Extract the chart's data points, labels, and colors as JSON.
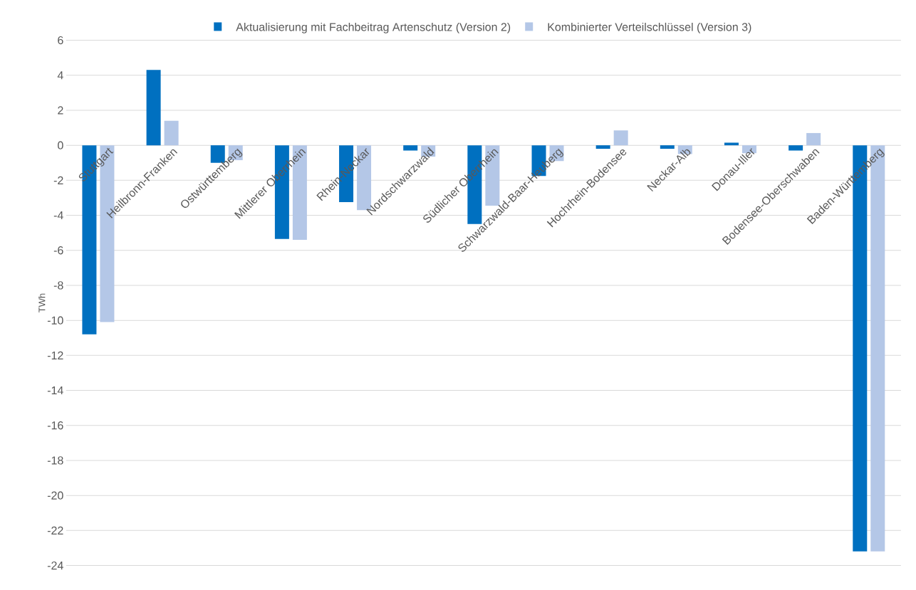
{
  "chart_data": {
    "type": "bar",
    "ylabel": "TWh",
    "categories": [
      "Stuttgart",
      "Heilbronn-Franken",
      "Ostwürttemberg",
      "Mittlerer Oberrhein",
      "Rhein-Neckar",
      "Nordschwarzwald",
      "Südlicher Oberrhein",
      "Schwarzwald-Baar-Heuberg",
      "Hochrhein-Bodensee",
      "Neckar-Alb",
      "Donau-Iller",
      "Bodensee-Oberschwaben",
      "Baden-Württemberg"
    ],
    "series": [
      {
        "name": "Aktualisierung mit Fachbeitrag Artenschutz (Version 2)",
        "color": "#0070c0",
        "values": [
          -10.8,
          4.3,
          -1.0,
          -5.35,
          -3.25,
          -0.3,
          -4.5,
          -1.75,
          -0.2,
          -0.2,
          0.15,
          -0.3,
          -23.2
        ]
      },
      {
        "name": "Kombinierter Verteilschlüssel (Version 3)",
        "color": "#b4c7e7",
        "values": [
          -10.1,
          1.4,
          -0.85,
          -5.4,
          -3.7,
          -0.65,
          -3.45,
          -0.9,
          0.85,
          -0.5,
          -0.45,
          0.7,
          -23.2
        ]
      }
    ],
    "ylim": [
      -24,
      6
    ],
    "yticks": [
      -24,
      -22,
      -20,
      -18,
      -16,
      -14,
      -12,
      -10,
      -8,
      -6,
      -4,
      -2,
      0,
      2,
      4,
      6
    ],
    "grid": "y",
    "legend": "top"
  }
}
